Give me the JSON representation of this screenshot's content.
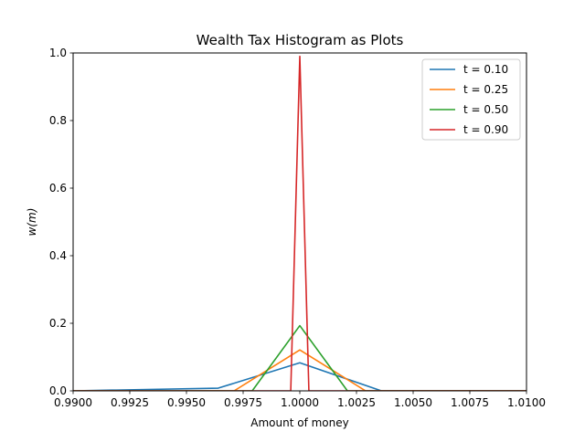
{
  "chart_data": {
    "type": "line",
    "title": "Wealth Tax Histogram as Plots",
    "xlabel": "Amount of money",
    "ylabel": "w(m)",
    "xlim": [
      0.99,
      1.01
    ],
    "ylim": [
      0.0,
      1.0
    ],
    "x_ticks": [
      "0.9900",
      "0.9925",
      "0.9950",
      "0.9975",
      "1.0000",
      "1.0025",
      "1.0050",
      "1.0075",
      "1.0100"
    ],
    "y_ticks": [
      "0.0",
      "0.2",
      "0.4",
      "0.6",
      "0.8",
      "1.0"
    ],
    "grid": false,
    "legend_position": "top-right",
    "series": [
      {
        "name": "t = 0.10",
        "color": "#1f77b4",
        "x": [
          0.99,
          0.9964,
          1.0,
          1.0036,
          1.01
        ],
        "y": [
          0.0,
          0.008,
          0.083,
          0.0,
          0.0
        ]
      },
      {
        "name": "t = 0.25",
        "color": "#ff7f0e",
        "x": [
          0.99,
          0.9971,
          1.0,
          1.0029,
          1.01
        ],
        "y": [
          0.0,
          0.0,
          0.121,
          0.0,
          0.0
        ]
      },
      {
        "name": "t = 0.50",
        "color": "#2ca02c",
        "x": [
          0.99,
          0.9979,
          1.0,
          1.0021,
          1.01
        ],
        "y": [
          0.0,
          0.0,
          0.193,
          0.0,
          0.0
        ]
      },
      {
        "name": "t = 0.90",
        "color": "#d62728",
        "x": [
          0.99,
          0.9996,
          1.0,
          1.0004,
          1.01
        ],
        "y": [
          0.0,
          0.0,
          0.99,
          0.0,
          0.0
        ]
      }
    ]
  }
}
